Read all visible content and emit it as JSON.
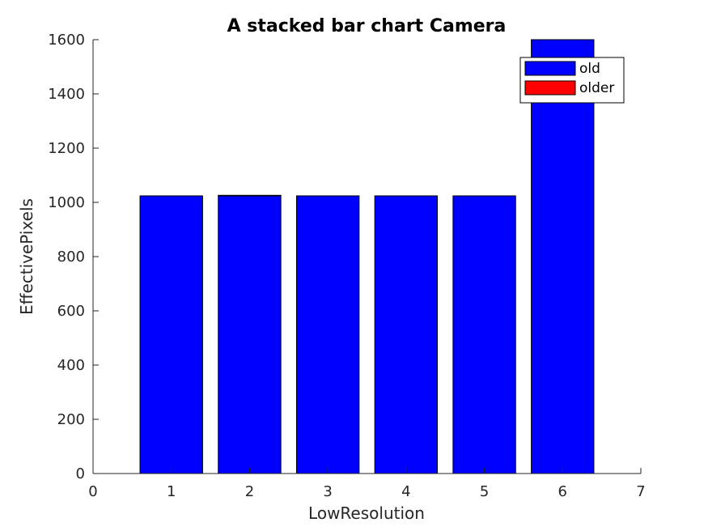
{
  "chart_data": {
    "type": "bar",
    "stacked": true,
    "title": "A stacked bar chart Camera",
    "xlabel": "LowResolution",
    "ylabel": "EffectivePixels",
    "x": [
      1,
      2,
      3,
      4,
      5,
      6
    ],
    "series": [
      {
        "name": "old",
        "color": "#0000ff",
        "values": [
          1024,
          1024,
          1024,
          1024,
          1024,
          1600
        ]
      },
      {
        "name": "older",
        "color": "#ff0000",
        "values": [
          0,
          2,
          0,
          0,
          0,
          0
        ]
      }
    ],
    "xlim": [
      0,
      7
    ],
    "ylim": [
      0,
      1600
    ],
    "xticks": [
      "0",
      "1",
      "2",
      "3",
      "4",
      "5",
      "6",
      "7"
    ],
    "yticks": [
      "0",
      "200",
      "400",
      "600",
      "800",
      "1000",
      "1200",
      "1400",
      "1600"
    ],
    "grid": false,
    "legend_position": "top-right"
  }
}
